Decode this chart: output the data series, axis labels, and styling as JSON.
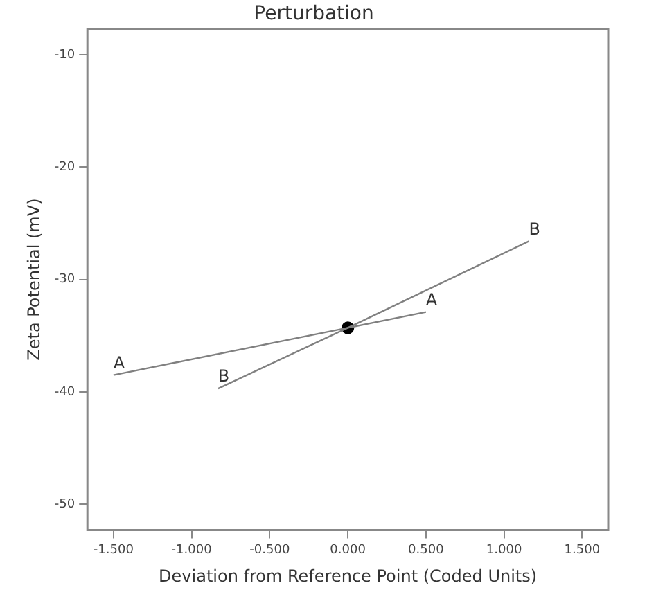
{
  "chart_data": {
    "type": "line",
    "title": "Perturbation",
    "xlabel": "Deviation from Reference Point (Coded Units)",
    "ylabel": "Zeta Potential (mV)",
    "xlim": [
      -1.667,
      1.667
    ],
    "ylim": [
      -52.3,
      -7.7
    ],
    "xticks": [
      {
        "value": -1.5,
        "label": "-1.500"
      },
      {
        "value": -1,
        "label": "-1.000"
      },
      {
        "value": -0.5,
        "label": "-0.500"
      },
      {
        "value": 0,
        "label": "0.000"
      },
      {
        "value": 0.5,
        "label": "0.500"
      },
      {
        "value": 1,
        "label": "1.000"
      },
      {
        "value": 1.5,
        "label": "1.500"
      }
    ],
    "yticks": [
      -10,
      -20,
      -30,
      -40,
      -50
    ],
    "grid": false,
    "legend": false,
    "line_style": "solid",
    "series": [
      {
        "name": "A",
        "color": "#808080",
        "x": [
          -1.5,
          0,
          0.5
        ],
        "values": [
          -38.5,
          -34.3,
          -32.9
        ],
        "marker": "none"
      },
      {
        "name": "B",
        "color": "#808080",
        "x": [
          -0.83,
          0,
          1.16
        ],
        "values": [
          -39.7,
          -34.3,
          -26.6
        ],
        "marker": "none"
      },
      {
        "type": "scatter",
        "color": "#000000",
        "x": [
          0
        ],
        "values": [
          -34.3
        ],
        "marker": "circle"
      }
    ]
  }
}
